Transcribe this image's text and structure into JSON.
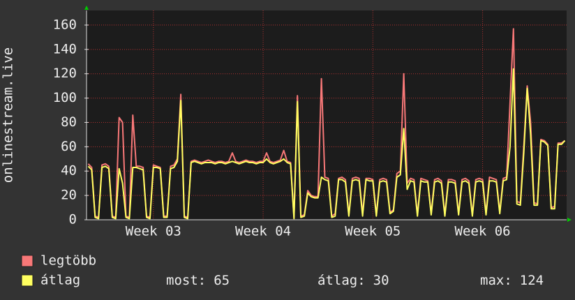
{
  "chart_data": {
    "type": "line",
    "ylabel": "onlinestream.live",
    "ylim": [
      0,
      172
    ],
    "yticks": [
      0,
      20,
      40,
      60,
      80,
      100,
      120,
      140,
      160
    ],
    "grid": true,
    "categories": [
      null,
      null,
      null,
      null,
      null,
      null,
      null,
      null,
      null,
      null,
      null,
      null,
      null,
      null,
      null,
      null,
      null,
      null,
      null,
      "Week 03",
      null,
      null,
      null,
      null,
      null,
      null,
      null,
      null,
      null,
      null,
      null,
      null,
      null,
      null,
      null,
      null,
      null,
      null,
      null,
      null,
      null,
      null,
      null,
      null,
      null,
      null,
      null,
      null,
      null,
      null,
      null,
      "Week 04",
      null,
      null,
      null,
      null,
      null,
      null,
      null,
      null,
      null,
      null,
      null,
      null,
      null,
      null,
      null,
      null,
      null,
      null,
      null,
      null,
      null,
      null,
      null,
      null,
      null,
      null,
      null,
      null,
      null,
      null,
      null,
      "Week 05",
      null,
      null,
      null,
      null,
      null,
      null,
      null,
      null,
      null,
      null,
      null,
      null,
      null,
      null,
      null,
      null,
      null,
      null,
      null,
      null,
      null,
      null,
      null,
      null,
      null,
      null,
      null,
      null,
      null,
      null,
      null,
      "Week 06",
      null,
      null,
      null,
      null,
      null,
      null,
      null,
      null,
      null,
      null,
      null,
      null,
      null,
      null,
      null,
      null,
      null,
      null,
      null,
      null,
      null,
      null,
      null,
      null
    ],
    "series": [
      {
        "name": "legtöbb",
        "color": "#f87878",
        "values": [
          46,
          43,
          3,
          2,
          45,
          46,
          44,
          3,
          2,
          84,
          80,
          3,
          2,
          86,
          44,
          44,
          43,
          3,
          2,
          45,
          44,
          43,
          3,
          3,
          44,
          45,
          50,
          103,
          3,
          2,
          48,
          49,
          48,
          47,
          48,
          49,
          48,
          47,
          48,
          48,
          47,
          48,
          55,
          48,
          47,
          48,
          49,
          48,
          48,
          47,
          48,
          48,
          55,
          48,
          47,
          48,
          49,
          57,
          48,
          47,
          2,
          102,
          3,
          4,
          24,
          20,
          19,
          19,
          116,
          35,
          34,
          3,
          5,
          34,
          35,
          33,
          4,
          34,
          35,
          34,
          5,
          34,
          34,
          33,
          4,
          33,
          34,
          33,
          6,
          8,
          38,
          40,
          120,
          30,
          34,
          33,
          4,
          34,
          33,
          32,
          5,
          33,
          34,
          32,
          4,
          33,
          33,
          32,
          5,
          33,
          34,
          32,
          4,
          33,
          34,
          33,
          5,
          35,
          34,
          33,
          6,
          34,
          35,
          96,
          157,
          15,
          14,
          60,
          110,
          80,
          14,
          13,
          66,
          65,
          62,
          10,
          11,
          63,
          63,
          65
        ]
      },
      {
        "name": "átlag",
        "color": "#ffff60",
        "values": [
          44,
          41,
          2,
          1,
          43,
          44,
          42,
          2,
          1,
          42,
          30,
          2,
          1,
          43,
          43,
          42,
          41,
          2,
          1,
          43,
          43,
          42,
          2,
          2,
          42,
          43,
          48,
          98,
          2,
          1,
          47,
          48,
          47,
          46,
          47,
          47,
          47,
          46,
          47,
          47,
          46,
          47,
          48,
          47,
          46,
          47,
          48,
          47,
          47,
          46,
          47,
          47,
          50,
          47,
          46,
          47,
          48,
          50,
          47,
          46,
          1,
          97,
          2,
          3,
          22,
          19,
          18,
          18,
          35,
          33,
          32,
          2,
          3,
          33,
          33,
          31,
          3,
          32,
          33,
          32,
          3,
          33,
          32,
          32,
          3,
          31,
          32,
          31,
          5,
          7,
          35,
          37,
          75,
          25,
          32,
          31,
          3,
          32,
          31,
          31,
          4,
          31,
          32,
          30,
          3,
          31,
          31,
          30,
          4,
          31,
          32,
          30,
          3,
          31,
          32,
          31,
          4,
          32,
          32,
          31,
          5,
          32,
          33,
          60,
          124,
          13,
          12,
          55,
          108,
          70,
          12,
          12,
          65,
          64,
          61,
          9,
          9,
          62,
          62,
          65
        ]
      }
    ],
    "stats": [
      {
        "label": "most:",
        "value": 65
      },
      {
        "label": "átlag:",
        "value": 30
      },
      {
        "label": "max:",
        "value": 124
      }
    ]
  }
}
